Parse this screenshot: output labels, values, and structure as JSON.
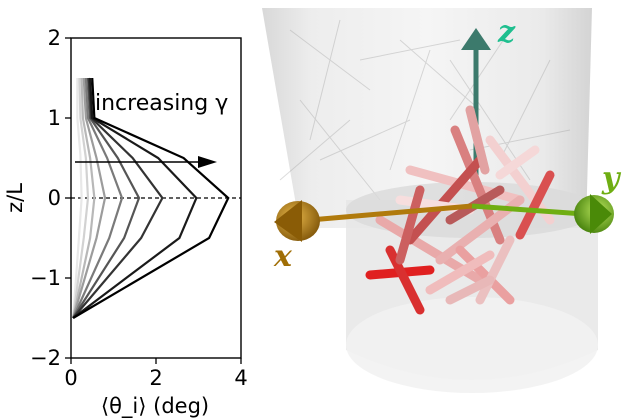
{
  "chart_data": {
    "type": "line",
    "xlabel": "⟨θ_i⟩ (deg)",
    "ylabel": "z/L",
    "xlim": [
      0,
      4
    ],
    "ylim": [
      -2,
      2
    ],
    "xticks": [
      "0",
      "2",
      "4"
    ],
    "yticks": [
      "−2",
      "−1",
      "0",
      "1",
      "2"
    ],
    "annotation": "increasing γ",
    "reference_line_y": 0,
    "series": [
      {
        "color": "#e8e8e8",
        "points": [
          [
            0.05,
            -1.5
          ],
          [
            0.18,
            -0.55
          ],
          [
            0.25,
            0.0
          ],
          [
            0.22,
            0.55
          ],
          [
            0.15,
            1.0
          ],
          [
            0.15,
            1.5
          ]
        ]
      },
      {
        "color": "#d2d2d2",
        "points": [
          [
            0.05,
            -1.5
          ],
          [
            0.3,
            -0.5
          ],
          [
            0.4,
            0.0
          ],
          [
            0.35,
            0.5
          ],
          [
            0.22,
            1.0
          ],
          [
            0.2,
            1.5
          ]
        ]
      },
      {
        "color": "#b8b8b8",
        "points": [
          [
            0.05,
            -1.5
          ],
          [
            0.45,
            -0.5
          ],
          [
            0.55,
            0.0
          ],
          [
            0.45,
            0.5
          ],
          [
            0.28,
            1.0
          ],
          [
            0.25,
            1.5
          ]
        ]
      },
      {
        "color": "#9c9c9c",
        "points": [
          [
            0.05,
            -1.5
          ],
          [
            0.6,
            -0.5
          ],
          [
            0.8,
            0.0
          ],
          [
            0.6,
            0.5
          ],
          [
            0.35,
            1.0
          ],
          [
            0.3,
            1.5
          ]
        ]
      },
      {
        "color": "#7a7a7a",
        "points": [
          [
            0.05,
            -1.5
          ],
          [
            0.9,
            -0.5
          ],
          [
            1.2,
            0.0
          ],
          [
            0.85,
            0.5
          ],
          [
            0.4,
            1.0
          ],
          [
            0.35,
            1.5
          ]
        ]
      },
      {
        "color": "#555555",
        "points": [
          [
            0.05,
            -1.5
          ],
          [
            1.25,
            -0.5
          ],
          [
            1.6,
            0.0
          ],
          [
            1.1,
            0.5
          ],
          [
            0.45,
            1.0
          ],
          [
            0.4,
            1.5
          ]
        ]
      },
      {
        "color": "#333333",
        "points": [
          [
            0.05,
            -1.5
          ],
          [
            1.65,
            -0.5
          ],
          [
            2.15,
            0.0
          ],
          [
            1.45,
            0.5
          ],
          [
            0.48,
            1.0
          ],
          [
            0.42,
            1.5
          ]
        ]
      },
      {
        "color": "#1a1a1a",
        "points": [
          [
            0.05,
            -1.5
          ],
          [
            2.55,
            -0.5
          ],
          [
            2.95,
            0.0
          ],
          [
            2.05,
            0.5
          ],
          [
            0.5,
            1.0
          ],
          [
            0.45,
            1.5
          ]
        ]
      },
      {
        "color": "#000000",
        "points": [
          [
            0.05,
            -1.5
          ],
          [
            3.25,
            -0.5
          ],
          [
            3.7,
            0.0
          ],
          [
            2.65,
            0.5
          ],
          [
            0.55,
            1.0
          ],
          [
            0.5,
            1.5
          ]
        ]
      }
    ]
  },
  "scene": {
    "axis_x_label": "x",
    "axis_y_label": "y",
    "axis_z_label": "z",
    "colors": {
      "x_axis": "#b07a0c",
      "y_axis": "#6fae12",
      "z_axis": "#3c7a6c",
      "z_label": "#1fbf8f"
    }
  }
}
